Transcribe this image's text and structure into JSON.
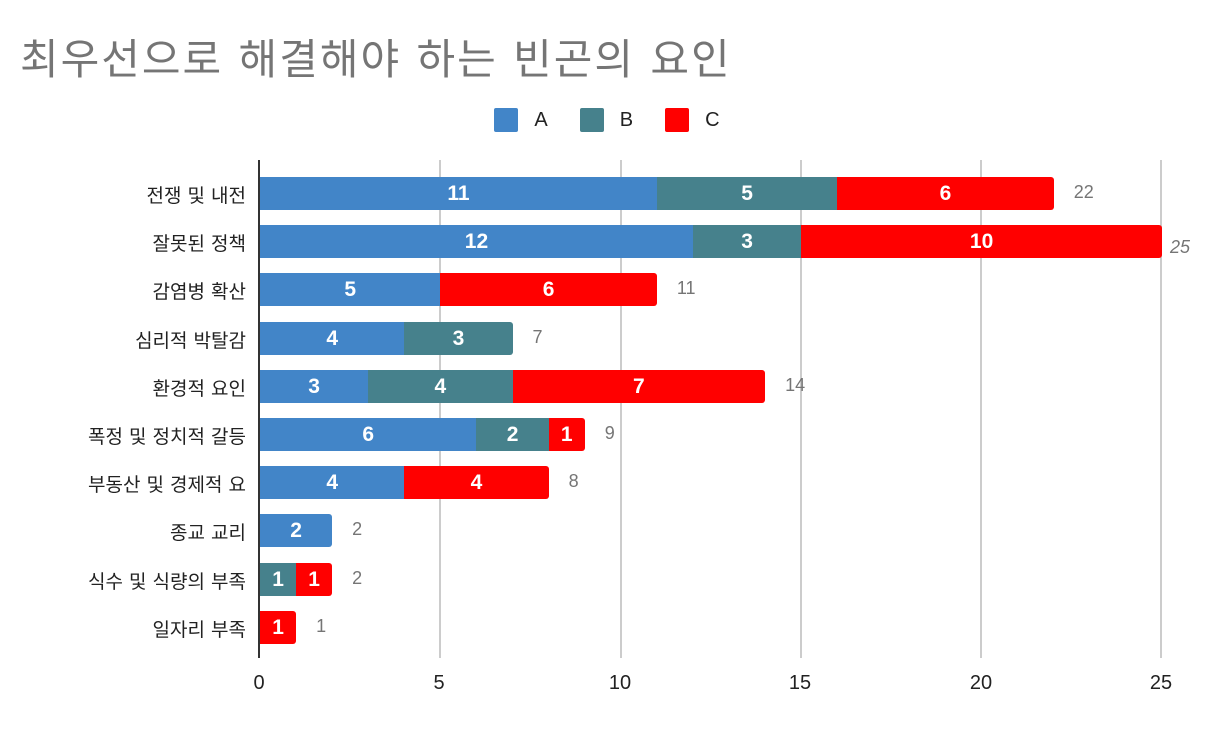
{
  "title": "최우선으로 해결해야 하는 빈곤의 요인",
  "legend": [
    {
      "label": "A",
      "color": "#4285c8"
    },
    {
      "label": "B",
      "color": "#46818c"
    },
    {
      "label": "C",
      "color": "#ff0000"
    }
  ],
  "colors": {
    "A": "#4285c8",
    "B": "#46818c",
    "C": "#ff0000",
    "grid": "#cccccc",
    "axis": "#333333",
    "total_label": "#757575",
    "title": "#757575"
  },
  "x_ticks": [
    "0",
    "5",
    "10",
    "15",
    "20",
    "25"
  ],
  "chart_data": {
    "type": "bar",
    "orientation": "horizontal",
    "stacked": true,
    "title": "최우선으로 해결해야 하는 빈곤의 요인",
    "xlabel": "",
    "ylabel": "",
    "xlim": [
      0,
      25
    ],
    "x_ticks": [
      0,
      5,
      10,
      15,
      20,
      25
    ],
    "grid": true,
    "legend_position": "top",
    "categories": [
      "전쟁 및 내전",
      "잘못된 정책",
      "감염병 확산",
      "심리적 박탈감",
      "환경적 요인",
      "폭정 및 정치적 갈등",
      "부동산 및 경제적 요",
      "종교 교리",
      "식수 및 식량의 부족",
      "일자리 부족"
    ],
    "series": [
      {
        "name": "A",
        "color": "#4285c8",
        "values": [
          11,
          12,
          5,
          4,
          3,
          6,
          4,
          2,
          0,
          0
        ]
      },
      {
        "name": "B",
        "color": "#46818c",
        "values": [
          5,
          3,
          0,
          3,
          4,
          2,
          0,
          0,
          1,
          0
        ]
      },
      {
        "name": "C",
        "color": "#ff0000",
        "values": [
          6,
          10,
          6,
          0,
          7,
          1,
          4,
          0,
          1,
          1
        ]
      }
    ],
    "totals": [
      22,
      25,
      11,
      7,
      14,
      9,
      8,
      2,
      2,
      1
    ]
  }
}
